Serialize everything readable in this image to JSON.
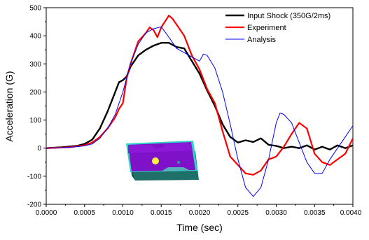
{
  "chart_data": {
    "type": "line",
    "xlabel": "Time (sec)",
    "ylabel": "Acceleration (G)",
    "xlim": [
      0.0,
      0.004
    ],
    "ylim": [
      -200,
      500
    ],
    "x_ticks": [
      "0.0000",
      "0.0005",
      "0.0010",
      "0.0015",
      "0.0020",
      "0.0025",
      "0.0030",
      "0.0035",
      "0.0040"
    ],
    "y_ticks": [
      "-200",
      "-100",
      "0",
      "100",
      "200",
      "300",
      "400",
      "500"
    ],
    "grid": false,
    "legend_position": "top-right",
    "inset_image": "circuit-board-model",
    "series": [
      {
        "name": "Input Shock (350G/2ms)",
        "color": "#000000",
        "points": [
          [
            0.0,
            0
          ],
          [
            0.0002,
            3
          ],
          [
            0.0004,
            8
          ],
          [
            0.0005,
            15
          ],
          [
            0.0006,
            30
          ],
          [
            0.0007,
            70
          ],
          [
            0.0008,
            130
          ],
          [
            0.0009,
            200
          ],
          [
            0.00095,
            235
          ],
          [
            0.001,
            242
          ],
          [
            0.00105,
            255
          ],
          [
            0.0011,
            290
          ],
          [
            0.0012,
            330
          ],
          [
            0.0013,
            350
          ],
          [
            0.0014,
            365
          ],
          [
            0.0015,
            375
          ],
          [
            0.0016,
            375
          ],
          [
            0.0017,
            360
          ],
          [
            0.0018,
            355
          ],
          [
            0.0019,
            310
          ],
          [
            0.002,
            265
          ],
          [
            0.0021,
            205
          ],
          [
            0.0022,
            150
          ],
          [
            0.0023,
            85
          ],
          [
            0.0024,
            40
          ],
          [
            0.0025,
            20
          ],
          [
            0.0026,
            28
          ],
          [
            0.0027,
            22
          ],
          [
            0.0028,
            35
          ],
          [
            0.0029,
            12
          ],
          [
            0.003,
            8
          ],
          [
            0.0031,
            0
          ],
          [
            0.0032,
            5
          ],
          [
            0.0033,
            0
          ],
          [
            0.0034,
            10
          ],
          [
            0.0035,
            -5
          ],
          [
            0.0036,
            5
          ],
          [
            0.0037,
            -5
          ],
          [
            0.0038,
            10
          ],
          [
            0.0039,
            0
          ],
          [
            0.004,
            10
          ]
        ]
      },
      {
        "name": "Experiment",
        "color": "#ff0000",
        "points": [
          [
            0.0,
            0
          ],
          [
            0.0003,
            3
          ],
          [
            0.0005,
            10
          ],
          [
            0.0006,
            20
          ],
          [
            0.0007,
            40
          ],
          [
            0.0008,
            70
          ],
          [
            0.0009,
            110
          ],
          [
            0.00095,
            140
          ],
          [
            0.001,
            160
          ],
          [
            0.00105,
            250
          ],
          [
            0.0011,
            300
          ],
          [
            0.00115,
            340
          ],
          [
            0.0012,
            380
          ],
          [
            0.0013,
            410
          ],
          [
            0.00135,
            430
          ],
          [
            0.0014,
            420
          ],
          [
            0.00145,
            395
          ],
          [
            0.0015,
            430
          ],
          [
            0.0016,
            472
          ],
          [
            0.00165,
            460
          ],
          [
            0.0017,
            440
          ],
          [
            0.0018,
            400
          ],
          [
            0.0019,
            330
          ],
          [
            0.002,
            280
          ],
          [
            0.0021,
            210
          ],
          [
            0.0022,
            160
          ],
          [
            0.0023,
            60
          ],
          [
            0.0024,
            -30
          ],
          [
            0.0025,
            -60
          ],
          [
            0.0026,
            -90
          ],
          [
            0.0027,
            -95
          ],
          [
            0.0028,
            -80
          ],
          [
            0.0029,
            -40
          ],
          [
            0.003,
            -30
          ],
          [
            0.0031,
            5
          ],
          [
            0.0032,
            50
          ],
          [
            0.0033,
            90
          ],
          [
            0.0034,
            70
          ],
          [
            0.0035,
            -20
          ],
          [
            0.0036,
            -50
          ],
          [
            0.0037,
            -60
          ],
          [
            0.0038,
            -40
          ],
          [
            0.0039,
            -20
          ],
          [
            0.004,
            35
          ]
        ]
      },
      {
        "name": "Analysis",
        "color": "#0000ff",
        "points": [
          [
            0.0,
            0
          ],
          [
            0.0003,
            3
          ],
          [
            0.0005,
            8
          ],
          [
            0.0006,
            15
          ],
          [
            0.0007,
            35
          ],
          [
            0.0008,
            70
          ],
          [
            0.0009,
            120
          ],
          [
            0.001,
            200
          ],
          [
            0.0011,
            300
          ],
          [
            0.0012,
            370
          ],
          [
            0.0013,
            410
          ],
          [
            0.0014,
            425
          ],
          [
            0.0015,
            432
          ],
          [
            0.0016,
            395
          ],
          [
            0.0017,
            355
          ],
          [
            0.0018,
            340
          ],
          [
            0.0019,
            325
          ],
          [
            0.002,
            310
          ],
          [
            0.00205,
            335
          ],
          [
            0.0021,
            330
          ],
          [
            0.0022,
            285
          ],
          [
            0.0023,
            200
          ],
          [
            0.0024,
            85
          ],
          [
            0.0025,
            -40
          ],
          [
            0.0026,
            -140
          ],
          [
            0.0027,
            -172
          ],
          [
            0.0028,
            -140
          ],
          [
            0.0029,
            -40
          ],
          [
            0.003,
            90
          ],
          [
            0.00305,
            125
          ],
          [
            0.0031,
            120
          ],
          [
            0.0032,
            90
          ],
          [
            0.0033,
            20
          ],
          [
            0.0034,
            -50
          ],
          [
            0.0035,
            -90
          ],
          [
            0.0036,
            -90
          ],
          [
            0.0037,
            -40
          ],
          [
            0.0038,
            0
          ],
          [
            0.0039,
            40
          ],
          [
            0.004,
            80
          ]
        ]
      }
    ]
  }
}
